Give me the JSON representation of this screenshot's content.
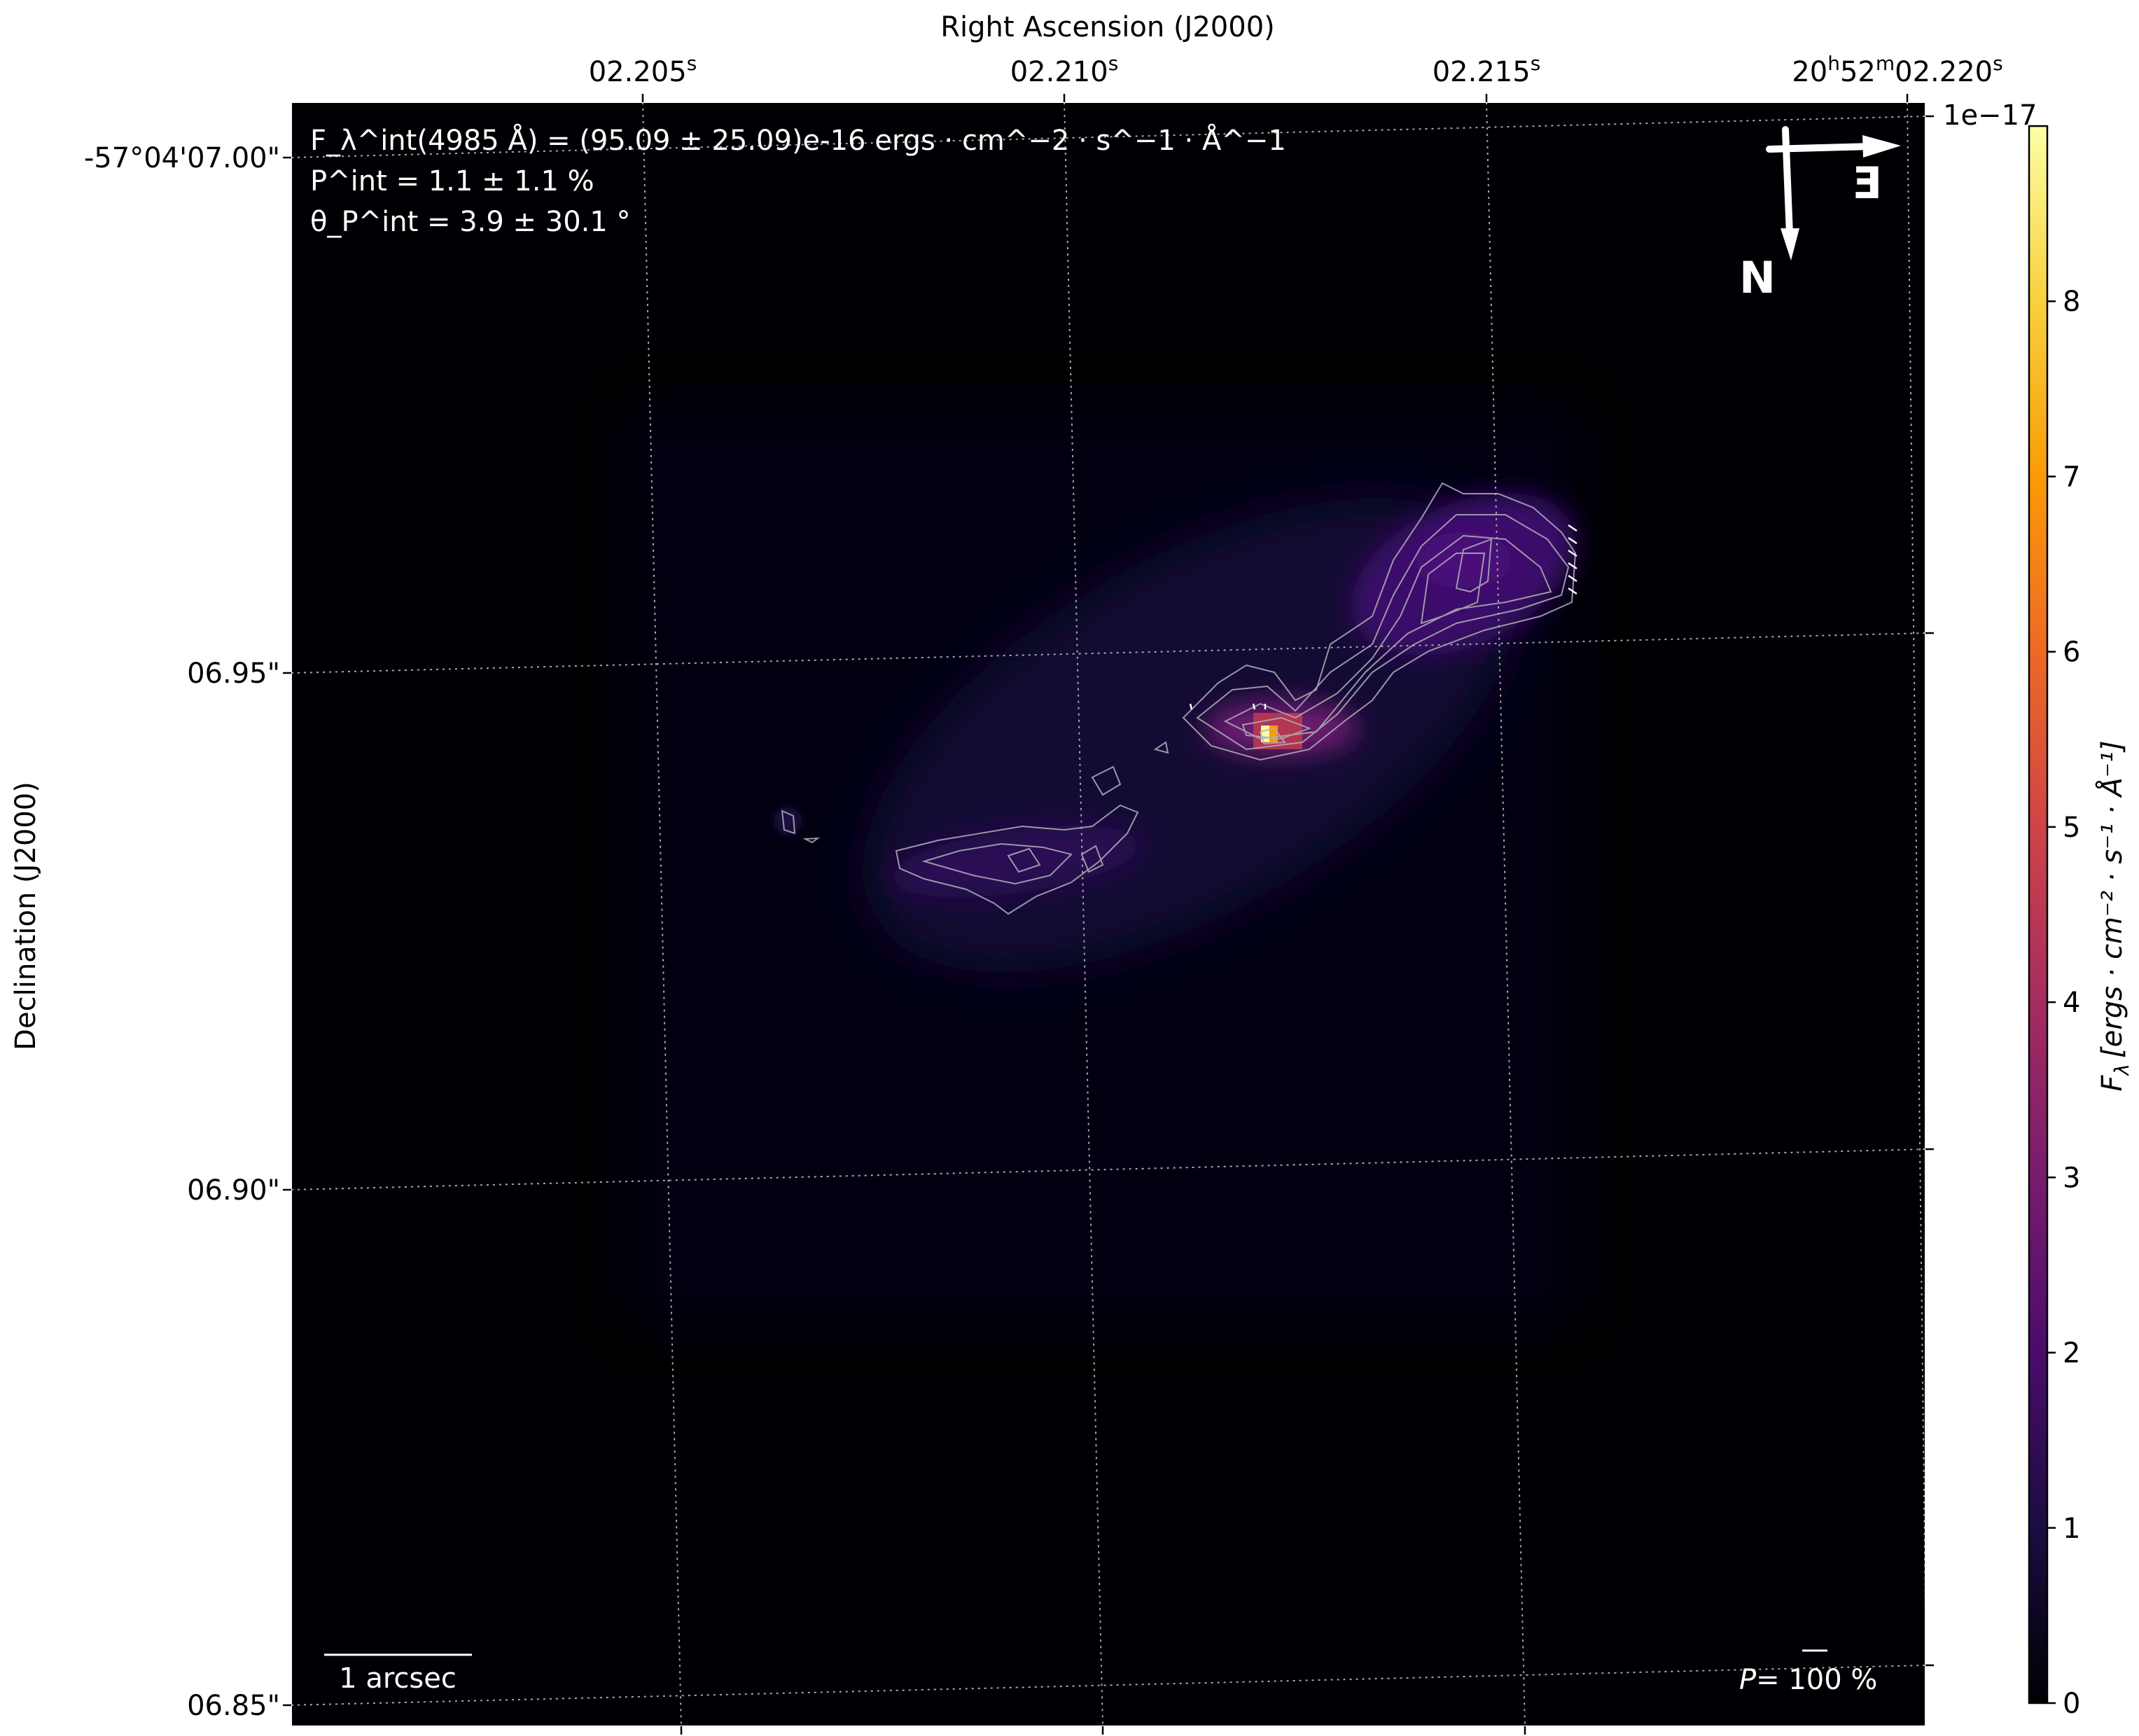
{
  "chart_data": {
    "type": "heatmap",
    "colormap": "inferno",
    "xlabel": "Right Ascension (J2000)",
    "ylabel": "Declination (J2000)",
    "x_ticks": [
      {
        "base": "02.205",
        "sup": "s"
      },
      {
        "base": "02.210",
        "sup": "s"
      },
      {
        "base": "02.215",
        "sup": "s"
      },
      {
        "h": "20",
        "m": "52",
        "base": "02.220",
        "sup": "s"
      }
    ],
    "y_ticks": [
      "-57°04'07.00\"",
      "06.95\"",
      "06.90\"",
      "06.85\""
    ],
    "grid": true,
    "colorbar": {
      "label": "F_λ [ergs · cm^−2 · s^−1 · Å^−1]",
      "label_main": "F",
      "label_sub": "λ",
      "label_units": "[ergs · cm⁻² · s⁻¹ · Å⁻¹]",
      "offset_text": "1e−17",
      "ticks": [
        "0",
        "1",
        "2",
        "3",
        "4",
        "5",
        "6",
        "7",
        "8"
      ],
      "range": [
        0,
        9.0
      ],
      "colors": [
        "#000004",
        "#1b0c41",
        "#4a0c6b",
        "#781c6d",
        "#a52c60",
        "#cf4446",
        "#ed6925",
        "#fb9b06",
        "#f7d13d",
        "#fcffa4"
      ]
    },
    "annotations": {
      "flux": "F_λ^int(4985 Å) = (95.09 ± 25.09)e-16 ergs · cm^−2 · s^−1 · Å^−1",
      "flux_pre": "(4985 Å) = (95.09 ± 25.09)e-16 ",
      "flux_units": "ergs · cm⁻² · s⁻¹ · Å⁻¹",
      "pol_degree": "P^int = 1.1 ± 1.1 %",
      "pol_degree_value": " = 1.1 ± 1.1 %",
      "pol_angle": "θ_P^int = 3.9 ± 30.1 °",
      "pol_angle_value": " = 3.9 ± 30.1 °",
      "sup_int": "int",
      "sub_lambda": "λ",
      "sub_P": "P",
      "F": "F",
      "P": "P",
      "theta": "θ"
    },
    "scale_bar": "1 arcsec",
    "pol_scale": {
      "symbol": "P",
      "text": "= 100 %"
    },
    "compass": {
      "north": "N",
      "east": "E"
    },
    "peak_value": 9.0
  }
}
